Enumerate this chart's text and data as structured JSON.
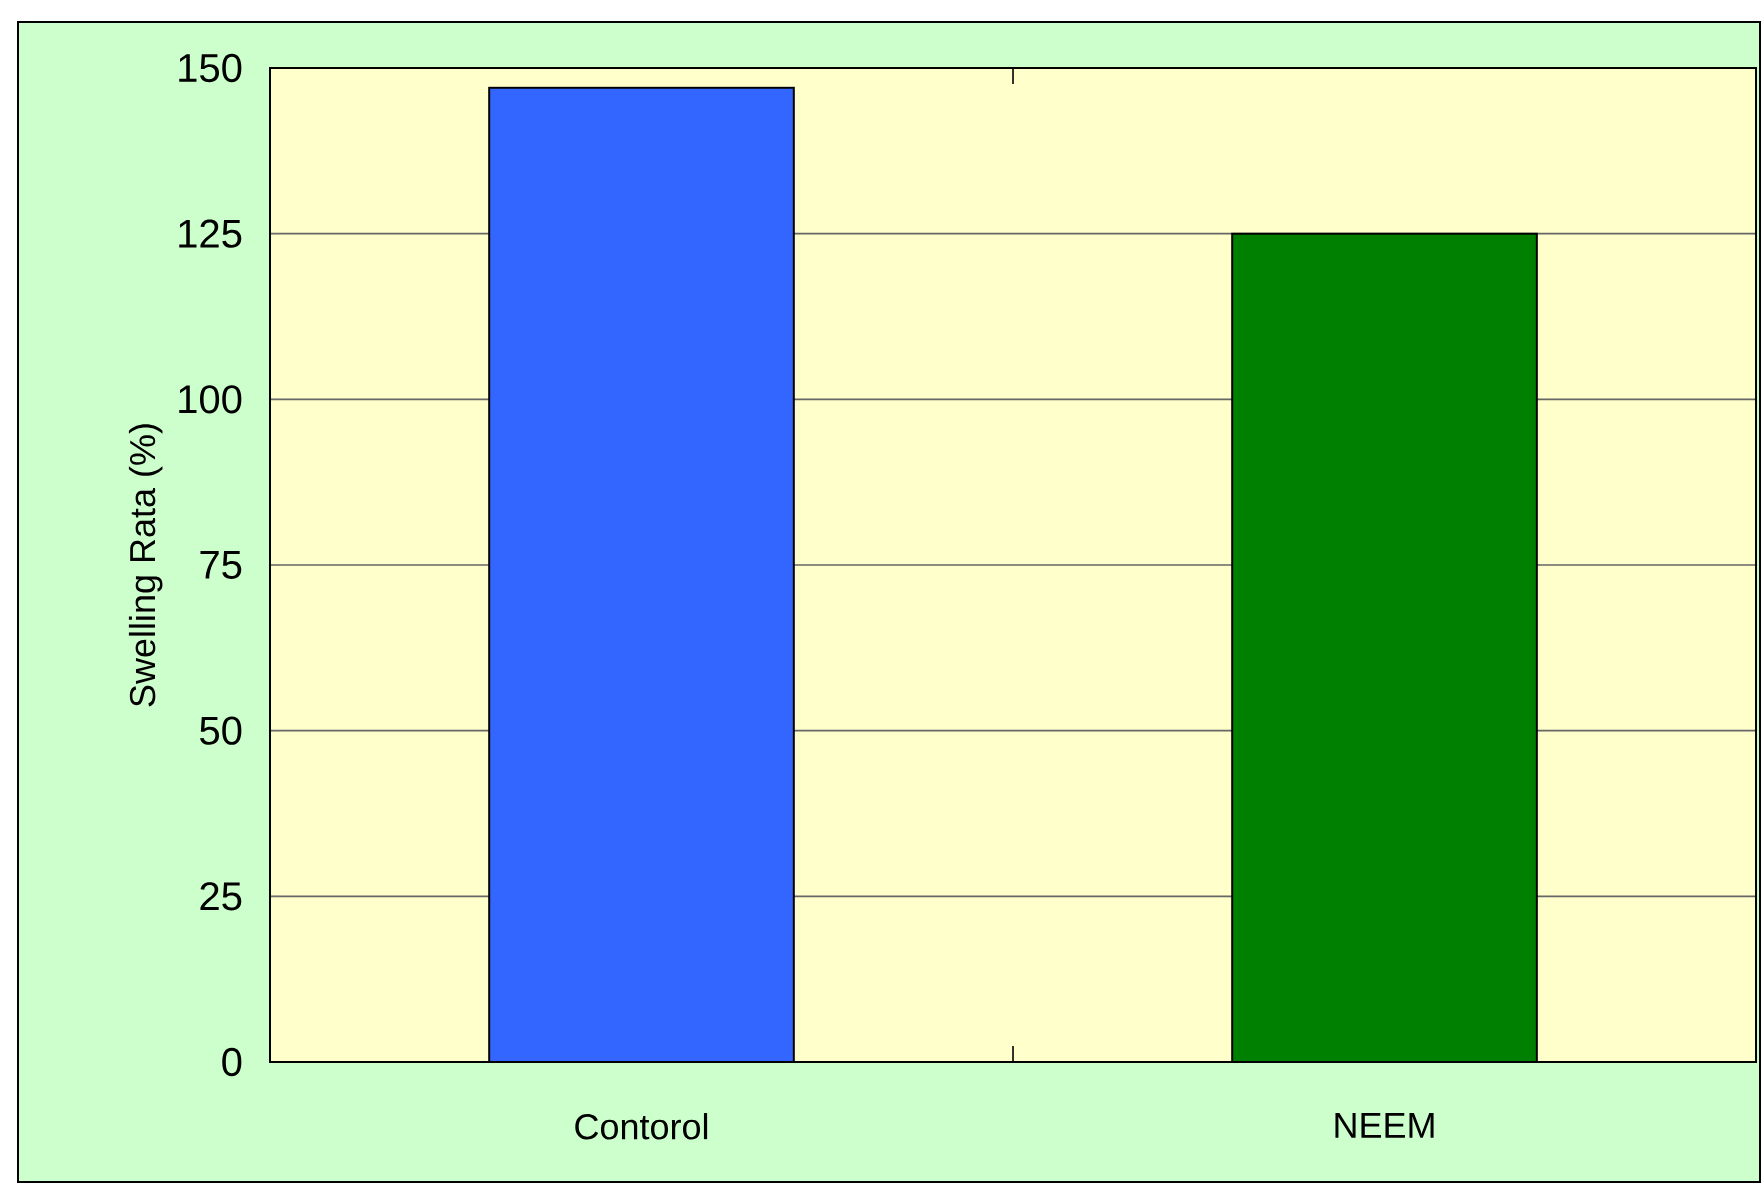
{
  "chart_data": {
    "type": "bar",
    "ylabel": "Swelling Rata (%)",
    "categories": [
      "Contorol",
      "NEEM"
    ],
    "values": [
      147,
      125
    ],
    "colors": [
      "#3366ff",
      "#008000"
    ],
    "ylim": [
      0,
      150
    ],
    "yticks": [
      0,
      25,
      50,
      75,
      100,
      125,
      150
    ],
    "grid": "y"
  }
}
